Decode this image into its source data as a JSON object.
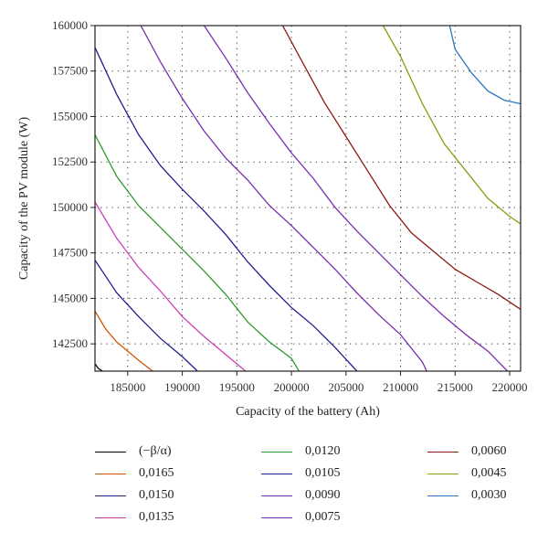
{
  "chart_data": {
    "type": "line",
    "subtype": "contour",
    "title": "",
    "xlabel": "Capacity of the battery (Ah)",
    "ylabel": "Capacity of the PV module (W)",
    "xlim": [
      182000,
      221000
    ],
    "ylim": [
      141000,
      160000
    ],
    "x_ticks": [
      185000,
      190000,
      195000,
      200000,
      205000,
      210000,
      215000,
      220000
    ],
    "y_ticks": [
      142500,
      145000,
      147500,
      150000,
      152500,
      155000,
      157500,
      160000
    ],
    "grid": true,
    "grid_style": "dotted",
    "legend_position": "bottom",
    "series": [
      {
        "name": "(−β/α)",
        "color": "#000000",
        "points": [
          [
            182000,
            141400
          ],
          [
            182300,
            141150
          ],
          [
            182700,
            141000
          ]
        ]
      },
      {
        "name": "0,0165",
        "color": "#d35400",
        "points": [
          [
            182000,
            144300
          ],
          [
            183000,
            143300
          ],
          [
            184000,
            142600
          ],
          [
            185200,
            142000
          ],
          [
            186200,
            141500
          ],
          [
            187300,
            141000
          ]
        ]
      },
      {
        "name": "0,0150",
        "color": "#1f1f8f",
        "points": [
          [
            182000,
            147100
          ],
          [
            184000,
            145300
          ],
          [
            186000,
            144000
          ],
          [
            188000,
            142800
          ],
          [
            190000,
            141800
          ],
          [
            191400,
            141000
          ]
        ]
      },
      {
        "name": "0,0135",
        "color": "#cc3fb5",
        "points": [
          [
            182000,
            150300
          ],
          [
            184000,
            148300
          ],
          [
            186000,
            146700
          ],
          [
            188000,
            145400
          ],
          [
            190000,
            144000
          ],
          [
            192000,
            142900
          ],
          [
            194000,
            141900
          ],
          [
            195800,
            141000
          ]
        ]
      },
      {
        "name": "0,0120",
        "color": "#2e9a2e",
        "points": [
          [
            182000,
            154000
          ],
          [
            184000,
            151700
          ],
          [
            186000,
            150100
          ],
          [
            188000,
            148900
          ],
          [
            190000,
            147700
          ],
          [
            192000,
            146500
          ],
          [
            194000,
            145200
          ],
          [
            196000,
            143700
          ],
          [
            198000,
            142600
          ],
          [
            200000,
            141700
          ],
          [
            200700,
            141000
          ]
        ]
      },
      {
        "name": "0,0105",
        "color": "#1f1f8f",
        "points": [
          [
            182000,
            158800
          ],
          [
            184000,
            156200
          ],
          [
            186000,
            154000
          ],
          [
            188000,
            152300
          ],
          [
            190000,
            151000
          ],
          [
            192000,
            149800
          ],
          [
            194000,
            148500
          ],
          [
            196000,
            147000
          ],
          [
            198000,
            145700
          ],
          [
            200000,
            144500
          ],
          [
            202000,
            143500
          ],
          [
            204000,
            142300
          ],
          [
            206000,
            141000
          ]
        ]
      },
      {
        "name": "0,0090",
        "color": "#7a2db0",
        "points": [
          [
            186200,
            160000
          ],
          [
            188000,
            158000
          ],
          [
            190000,
            156000
          ],
          [
            192000,
            154200
          ],
          [
            194000,
            152700
          ],
          [
            196000,
            151500
          ],
          [
            198000,
            150100
          ],
          [
            200000,
            149000
          ],
          [
            202000,
            147800
          ],
          [
            204000,
            146600
          ],
          [
            206000,
            145300
          ],
          [
            208000,
            144100
          ],
          [
            210000,
            143000
          ],
          [
            212000,
            141500
          ],
          [
            212400,
            141000
          ]
        ]
      },
      {
        "name": "0,0075",
        "color": "#7a2db0",
        "points": [
          [
            192000,
            160000
          ],
          [
            194000,
            158200
          ],
          [
            196000,
            156300
          ],
          [
            198000,
            154600
          ],
          [
            200000,
            153000
          ],
          [
            202000,
            151600
          ],
          [
            204000,
            150000
          ],
          [
            206000,
            148700
          ],
          [
            208000,
            147500
          ],
          [
            210000,
            146300
          ],
          [
            212000,
            145100
          ],
          [
            214000,
            144000
          ],
          [
            216000,
            143000
          ],
          [
            218000,
            142100
          ],
          [
            219800,
            141000
          ]
        ]
      },
      {
        "name": "0,0060",
        "color": "#8b1a10",
        "points": [
          [
            199200,
            160000
          ],
          [
            201000,
            158000
          ],
          [
            203000,
            155800
          ],
          [
            205000,
            153900
          ],
          [
            207000,
            152000
          ],
          [
            209000,
            150100
          ],
          [
            211000,
            148600
          ],
          [
            213000,
            147600
          ],
          [
            215000,
            146600
          ],
          [
            217000,
            145900
          ],
          [
            219000,
            145200
          ],
          [
            221000,
            144400
          ]
        ]
      },
      {
        "name": "0,0045",
        "color": "#8f9a10",
        "points": [
          [
            208400,
            160000
          ],
          [
            210000,
            158300
          ],
          [
            212000,
            155700
          ],
          [
            214000,
            153500
          ],
          [
            216000,
            152000
          ],
          [
            218000,
            150500
          ],
          [
            220000,
            149500
          ],
          [
            221000,
            149100
          ]
        ]
      },
      {
        "name": "0,0030",
        "color": "#2c74c0",
        "points": [
          [
            214500,
            160000
          ],
          [
            215000,
            158700
          ],
          [
            216500,
            157400
          ],
          [
            218000,
            156400
          ],
          [
            219500,
            155900
          ],
          [
            221000,
            155700
          ]
        ]
      }
    ]
  }
}
